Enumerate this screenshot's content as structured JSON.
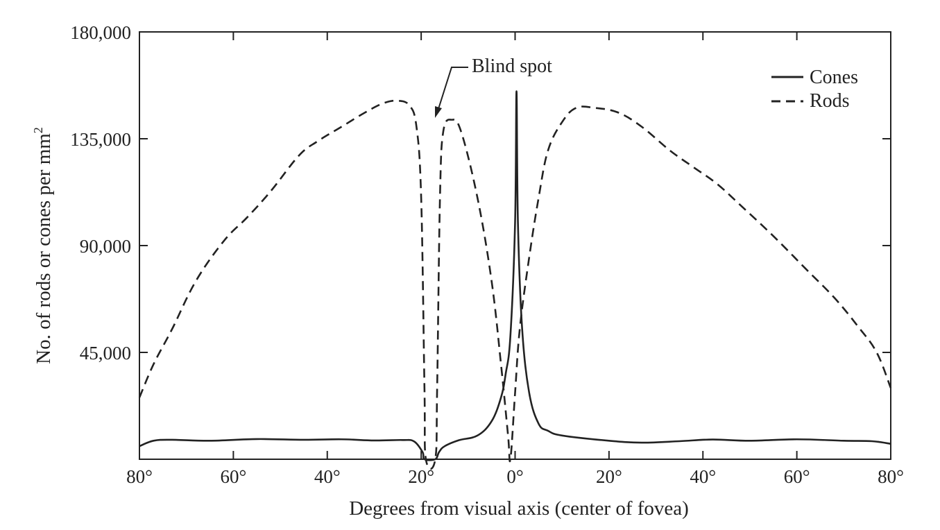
{
  "chart_data": {
    "type": "line",
    "title": "",
    "xlabel": "Degrees from visual axis (center of fovea)",
    "ylabel": "No. of rods or cones per mm",
    "ylabel_superscript": "2",
    "xlim": [
      -80,
      80
    ],
    "ylim": [
      0,
      180000
    ],
    "x_ticks": [
      -80,
      -60,
      -40,
      -20,
      0,
      20,
      40,
      60,
      80
    ],
    "x_tick_labels": [
      "80°",
      "60°",
      "40°",
      "20°",
      "0°",
      "20°",
      "40°",
      "60°",
      "80°"
    ],
    "y_ticks": [
      45000,
      90000,
      135000,
      180000
    ],
    "y_tick_labels": [
      "45,000",
      "90,000",
      "135,000",
      "180,000"
    ],
    "grid": false,
    "legend_position": "top-right",
    "annotations": [
      {
        "text": "Blind spot",
        "x": -18,
        "y": 143000
      }
    ],
    "series": [
      {
        "name": "Cones",
        "style": "solid",
        "color": "#222222",
        "points": [
          [
            -80,
            5500
          ],
          [
            -77,
            7800
          ],
          [
            -73,
            8200
          ],
          [
            -65,
            7800
          ],
          [
            -55,
            8500
          ],
          [
            -45,
            8200
          ],
          [
            -37,
            8400
          ],
          [
            -30,
            7900
          ],
          [
            -24,
            8100
          ],
          [
            -21.5,
            7500
          ],
          [
            -19.7,
            3000
          ],
          [
            -19.3,
            0
          ],
          [
            -17,
            0
          ],
          [
            -16.2,
            3000
          ],
          [
            -15,
            5500
          ],
          [
            -12,
            8000
          ],
          [
            -8,
            10000
          ],
          [
            -5,
            16000
          ],
          [
            -3,
            26000
          ],
          [
            -2,
            36000
          ],
          [
            -1,
            52000
          ],
          [
            0,
            100000
          ],
          [
            0.3,
            155000
          ],
          [
            0.6,
            100000
          ],
          [
            1.5,
            55000
          ],
          [
            3,
            28000
          ],
          [
            5,
            15000
          ],
          [
            7,
            12000
          ],
          [
            10,
            10000
          ],
          [
            20,
            7800
          ],
          [
            27,
            7000
          ],
          [
            35,
            7600
          ],
          [
            42,
            8300
          ],
          [
            50,
            7800
          ],
          [
            60,
            8400
          ],
          [
            70,
            7800
          ],
          [
            76,
            7600
          ],
          [
            80,
            6500
          ]
        ]
      },
      {
        "name": "Rods",
        "style": "dashed",
        "color": "#222222",
        "points": [
          [
            -80,
            26000
          ],
          [
            -77,
            40000
          ],
          [
            -73,
            55000
          ],
          [
            -68,
            75000
          ],
          [
            -62,
            92000
          ],
          [
            -57,
            102000
          ],
          [
            -52,
            113000
          ],
          [
            -46,
            128000
          ],
          [
            -42,
            134000
          ],
          [
            -37,
            140000
          ],
          [
            -32,
            146000
          ],
          [
            -28,
            150000
          ],
          [
            -25,
            151000
          ],
          [
            -22.5,
            149000
          ],
          [
            -21,
            140000
          ],
          [
            -20,
            110000
          ],
          [
            -19.3,
            30000
          ],
          [
            -19,
            0
          ],
          [
            -17,
            0
          ],
          [
            -16.6,
            30000
          ],
          [
            -16,
            110000
          ],
          [
            -15.3,
            138000
          ],
          [
            -13.5,
            143000
          ],
          [
            -11.5,
            138000
          ],
          [
            -8,
            110000
          ],
          [
            -5,
            75000
          ],
          [
            -3,
            40000
          ],
          [
            -1.5,
            10000
          ],
          [
            -1,
            0
          ],
          [
            0,
            28000
          ],
          [
            1,
            55000
          ],
          [
            3,
            85000
          ],
          [
            5,
            110000
          ],
          [
            7,
            130000
          ],
          [
            10,
            142000
          ],
          [
            13,
            148000
          ],
          [
            17,
            148000
          ],
          [
            22,
            146000
          ],
          [
            27,
            140000
          ],
          [
            33,
            130000
          ],
          [
            38,
            123000
          ],
          [
            43,
            116000
          ],
          [
            48,
            107000
          ],
          [
            55,
            94000
          ],
          [
            62,
            80000
          ],
          [
            68,
            68000
          ],
          [
            73,
            56000
          ],
          [
            77,
            45000
          ],
          [
            80,
            30000
          ]
        ]
      }
    ]
  }
}
